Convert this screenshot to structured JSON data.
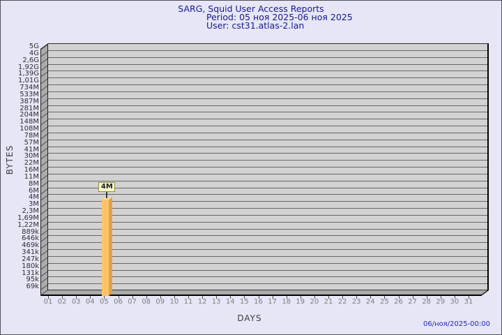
{
  "title": {
    "line1": "SARG, Squid User Access Reports",
    "line2": "Period: 05 ноя 2025-06 ноя 2025",
    "line3": "User: cst31.atlas-2.lan"
  },
  "axes": {
    "y_title": "BYTES",
    "x_title": "DAYS"
  },
  "footer": {
    "timestamp": "06/ноя/2025-00:00"
  },
  "chart_data": {
    "type": "bar",
    "scale_y": "log",
    "title": "SARG, Squid User Access Reports",
    "subtitle": "Period: 05 ноя 2025-06 ноя 2025 — User: cst31.atlas-2.lan",
    "xlabel": "DAYS",
    "ylabel": "BYTES",
    "grid": "horizontal",
    "categories": [
      "01",
      "02",
      "03",
      "04",
      "05",
      "06",
      "07",
      "08",
      "09",
      "10",
      "11",
      "12",
      "13",
      "14",
      "15",
      "16",
      "17",
      "18",
      "19",
      "20",
      "21",
      "22",
      "23",
      "24",
      "25",
      "26",
      "27",
      "28",
      "29",
      "30",
      "31"
    ],
    "y_tick_labels": [
      "5G",
      "4G",
      "2,6G",
      "1,92G",
      "1,39G",
      "1,01G",
      "734M",
      "533M",
      "387M",
      "281M",
      "204M",
      "148M",
      "108M",
      "78M",
      "57M",
      "41M",
      "30M",
      "22M",
      "16M",
      "11M",
      "8M",
      "6M",
      "4M",
      "3M",
      "2,3M",
      "1,69M",
      "1,22M",
      "889k",
      "646k",
      "469k",
      "341k",
      "247k",
      "180k",
      "131k",
      "95k",
      "69k"
    ],
    "ylim_labels": [
      "69k",
      "5G"
    ],
    "series": [
      {
        "name": "bytes",
        "points": [
          {
            "category": "05",
            "value_label": "4M",
            "y_tick": "4M"
          }
        ]
      }
    ]
  },
  "colors": {
    "background": "#e6e6f6",
    "title_text": "#18188c",
    "timestamp_text": "#2424b4",
    "plot_wall": "#d2d2d2",
    "plot_side": "#ababab",
    "gridline": "#676767",
    "bar_front": "#fec468",
    "bar_side": "#dfa14b",
    "bar_top": "#fbdca0",
    "annotation_bg": "#f6f6cf",
    "annotation_border": "#8f8f3d"
  }
}
